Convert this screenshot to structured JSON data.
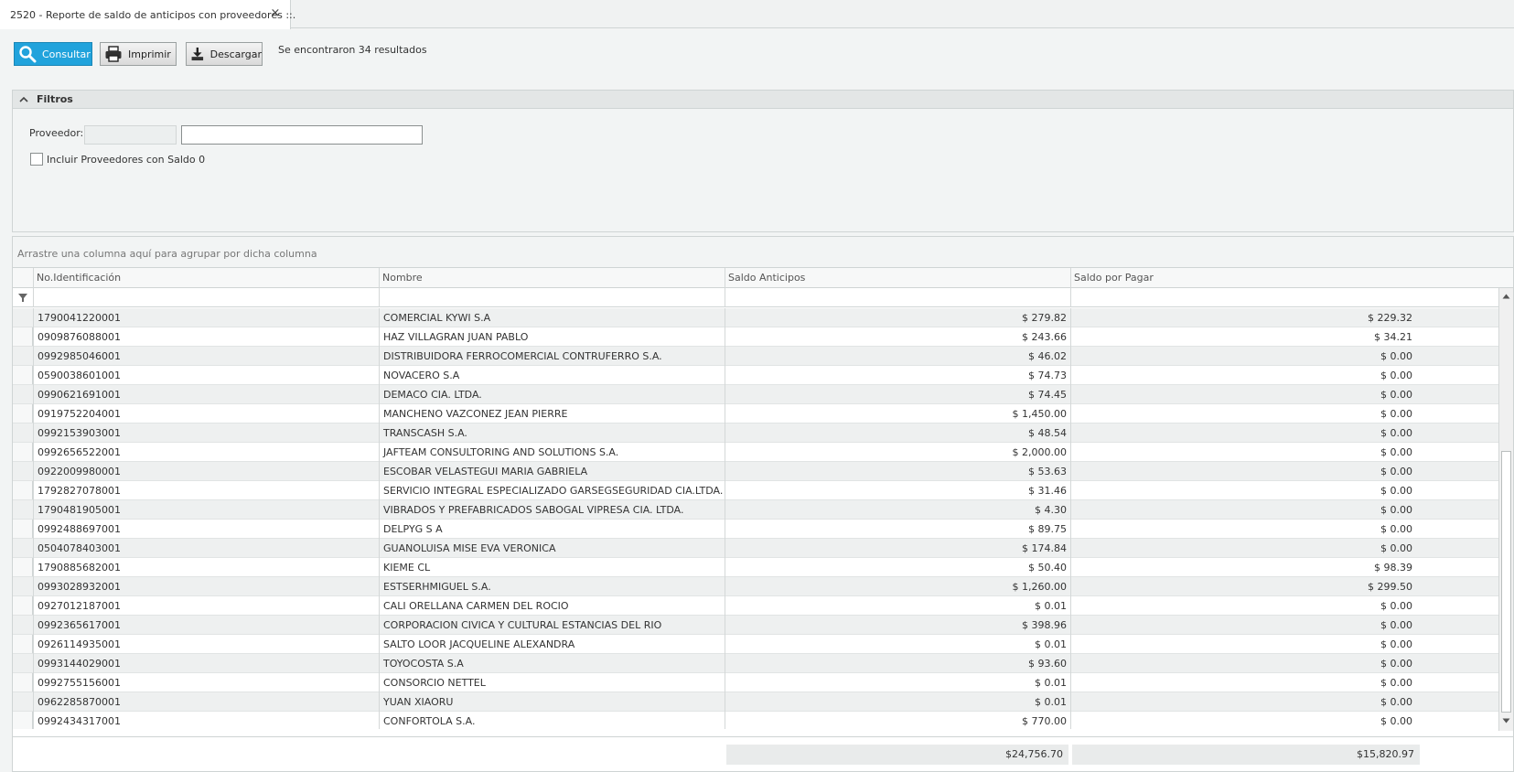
{
  "tab": {
    "title": "2520 - Reporte de saldo de anticipos con proveedores ::.",
    "close": "×"
  },
  "toolbar": {
    "consultar": "Consultar",
    "imprimir": "Imprimir",
    "descargar": "Descargar",
    "result_text": "Se encontraron 34 resultados"
  },
  "filters": {
    "title": "Filtros",
    "proveedor_label": "Proveedor:",
    "proveedor_code": "",
    "proveedor_name": "",
    "incluir_label": "Incluir Proveedores con Saldo 0"
  },
  "grid": {
    "group_panel": "Arrastre una columna aquí para agrupar por dicha columna",
    "columns": [
      "No.Identificación",
      "Nombre",
      "Saldo Anticipos",
      "Saldo por Pagar"
    ],
    "rows": [
      [
        "1790041220001",
        "COMERCIAL KYWI S.A",
        "$ 279.82",
        "$ 229.32"
      ],
      [
        "0909876088001",
        "HAZ VILLAGRAN JUAN PABLO",
        "$ 243.66",
        "$ 34.21"
      ],
      [
        "0992985046001",
        "DISTRIBUIDORA FERROCOMERCIAL CONTRUFERRO S.A.",
        "$ 46.02",
        "$ 0.00"
      ],
      [
        "0590038601001",
        "NOVACERO S.A",
        "$ 74.73",
        "$ 0.00"
      ],
      [
        "0990621691001",
        "DEMACO CIA. LTDA.",
        "$ 74.45",
        "$ 0.00"
      ],
      [
        "0919752204001",
        "MANCHENO VAZCONEZ JEAN PIERRE",
        "$ 1,450.00",
        "$ 0.00"
      ],
      [
        "0992153903001",
        "TRANSCASH S.A.",
        "$ 48.54",
        "$ 0.00"
      ],
      [
        "0992656522001",
        "JAFTEAM CONSULTORING AND SOLUTIONS S.A.",
        "$ 2,000.00",
        "$ 0.00"
      ],
      [
        "0922009980001",
        "ESCOBAR VELASTEGUI MARIA GABRIELA",
        "$ 53.63",
        "$ 0.00"
      ],
      [
        "1792827078001",
        "SERVICIO INTEGRAL ESPECIALIZADO GARSEGSEGURIDAD CIA.LTDA.",
        "$ 31.46",
        "$ 0.00"
      ],
      [
        "1790481905001",
        "VIBRADOS Y PREFABRICADOS SABOGAL VIPRESA CIA. LTDA.",
        "$ 4.30",
        "$ 0.00"
      ],
      [
        "0992488697001",
        "DELPYG S A",
        "$ 89.75",
        "$ 0.00"
      ],
      [
        "0504078403001",
        "GUANOLUISA MISE EVA VERONICA",
        "$ 174.84",
        "$ 0.00"
      ],
      [
        "1790885682001",
        "KIEME CL",
        "$ 50.40",
        "$ 98.39"
      ],
      [
        "0993028932001",
        "ESTSERHMIGUEL S.A.",
        "$ 1,260.00",
        "$ 299.50"
      ],
      [
        "0927012187001",
        "CALI ORELLANA CARMEN DEL ROCIO",
        "$ 0.01",
        "$ 0.00"
      ],
      [
        "0992365617001",
        "CORPORACION CIVICA Y CULTURAL ESTANCIAS DEL RIO",
        "$ 398.96",
        "$ 0.00"
      ],
      [
        "0926114935001",
        "SALTO LOOR JACQUELINE ALEXANDRA",
        "$ 0.01",
        "$ 0.00"
      ],
      [
        "0993144029001",
        "TOYOCOSTA S.A",
        "$ 93.60",
        "$ 0.00"
      ],
      [
        "0992755156001",
        "CONSORCIO NETTEL",
        "$ 0.01",
        "$ 0.00"
      ],
      [
        "0962285870001",
        "YUAN XIAORU",
        "$ 0.01",
        "$ 0.00"
      ],
      [
        "0992434317001",
        "CONFORTOLA S.A.",
        "$ 770.00",
        "$ 0.00"
      ]
    ],
    "totals": {
      "saldo_anticipos": "$24,756.70",
      "saldo_por_pagar": "$15,820.97"
    }
  },
  "colors": {
    "primary": "#21a3dc",
    "alt_row": "#eef0f0"
  },
  "icons": [
    "close-icon",
    "search-icon",
    "printer-icon",
    "download-icon",
    "chevron-up-icon",
    "filter-icon",
    "arrow-up-icon",
    "arrow-down-icon"
  ]
}
